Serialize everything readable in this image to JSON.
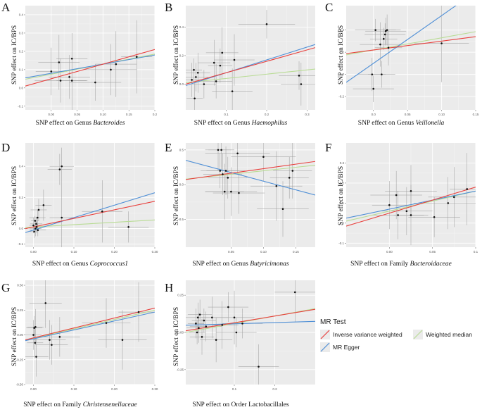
{
  "figure": {
    "ylabel": "SNP effect on IC/BPS",
    "xlabel_prefix": "SNP effect on"
  },
  "legend": {
    "title": "MR Test",
    "items": [
      {
        "label": "Inverse variance weighted",
        "color": "#e8403d"
      },
      {
        "label": "MR Egger",
        "color": "#4f8fd6"
      },
      {
        "label": "Weighted median",
        "color": "#b9dc95"
      }
    ]
  },
  "chart_data": [
    {
      "id": "A",
      "type": "scatter",
      "xlabel_text": "SNP effect on Genus",
      "xlabel_taxon": "Bacteroides",
      "xlim": [
        -0.05,
        0.2
      ],
      "ylim": [
        -0.12,
        0.45
      ],
      "xticks": [
        0.0,
        0.05,
        0.1,
        0.15,
        0.2
      ],
      "yticks": [
        -0.1,
        0.0,
        0.1,
        0.2,
        0.3,
        0.4
      ],
      "xtick_labels": [
        "0.00",
        "0.05",
        "0.10",
        "0.15",
        "0.2"
      ],
      "ytick_labels": [
        "-0.1",
        "0.0",
        "0.1",
        "0.2",
        "0.3",
        "0.4"
      ],
      "points": [
        {
          "x": 0.0,
          "y": 0.09,
          "xe": 0.03,
          "ye": 0.13
        },
        {
          "x": 0.015,
          "y": 0.14,
          "xe": 0.04,
          "ye": 0.15
        },
        {
          "x": 0.018,
          "y": 0.04,
          "xe": 0.05,
          "ye": 0.12
        },
        {
          "x": 0.035,
          "y": 0.06,
          "xe": 0.04,
          "ye": 0.12
        },
        {
          "x": 0.04,
          "y": 0.16,
          "xe": 0.03,
          "ye": 0.14
        },
        {
          "x": 0.04,
          "y": 0.04,
          "xe": 0.03,
          "ye": 0.16
        },
        {
          "x": 0.085,
          "y": 0.03,
          "xe": 0.05,
          "ye": 0.1
        },
        {
          "x": 0.115,
          "y": 0.1,
          "xe": 0.05,
          "ye": 0.14
        },
        {
          "x": 0.125,
          "y": 0.13,
          "xe": 0.04,
          "ye": 0.18
        },
        {
          "x": 0.165,
          "y": 0.17,
          "xe": 0.03,
          "ye": 0.2
        }
      ],
      "lines": [
        {
          "method": "Inverse variance weighted",
          "slope": 0.8,
          "intercept": 0.05
        },
        {
          "method": "MR Egger",
          "slope": 0.5,
          "intercept": 0.08
        },
        {
          "method": "Weighted median",
          "slope": 0.55,
          "intercept": 0.075
        }
      ]
    },
    {
      "id": "B",
      "type": "scatter",
      "xlabel_text": "SNP effect on Genus",
      "xlabel_taxon": "Haemophilus",
      "xlim": [
        0.0,
        0.32
      ],
      "ylim": [
        -0.18,
        0.55
      ],
      "xticks": [
        0.1,
        0.2,
        0.3
      ],
      "yticks": [
        0.0,
        0.2,
        0.4
      ],
      "xtick_labels": [
        "0.1",
        "0.2",
        "0.3"
      ],
      "ytick_labels": [
        "0.0",
        "0.2",
        "0.4"
      ],
      "points": [
        {
          "x": 0.015,
          "y": 0.03,
          "xe": 0.02,
          "ye": 0.12
        },
        {
          "x": 0.02,
          "y": 0.1,
          "xe": 0.02,
          "ye": 0.08
        },
        {
          "x": 0.022,
          "y": -0.1,
          "xe": 0.02,
          "ye": 0.12
        },
        {
          "x": 0.025,
          "y": 0.05,
          "xe": 0.03,
          "ye": 0.1
        },
        {
          "x": 0.03,
          "y": 0.08,
          "xe": 0.03,
          "ye": 0.14
        },
        {
          "x": 0.045,
          "y": 0.0,
          "xe": 0.03,
          "ye": 0.1
        },
        {
          "x": 0.07,
          "y": 0.15,
          "xe": 0.04,
          "ye": 0.16
        },
        {
          "x": 0.075,
          "y": 0.02,
          "xe": 0.04,
          "ye": 0.12
        },
        {
          "x": 0.085,
          "y": 0.13,
          "xe": 0.03,
          "ye": 0.12
        },
        {
          "x": 0.09,
          "y": 0.22,
          "xe": 0.04,
          "ye": 0.18
        },
        {
          "x": 0.115,
          "y": -0.05,
          "xe": 0.05,
          "ye": 0.16
        },
        {
          "x": 0.12,
          "y": 0.17,
          "xe": 0.05,
          "ye": 0.18
        },
        {
          "x": 0.2,
          "y": 0.42,
          "xe": 0.07,
          "ye": 0.1
        },
        {
          "x": 0.28,
          "y": 0.06,
          "xe": 0.05,
          "ye": 0.1
        },
        {
          "x": 0.285,
          "y": 0.0,
          "xe": 0.05,
          "ye": 0.15
        }
      ],
      "lines": [
        {
          "method": "Inverse variance weighted",
          "slope": 0.8,
          "intercept": 0.0
        },
        {
          "method": "MR Egger",
          "slope": 0.9,
          "intercept": -0.01
        },
        {
          "method": "Weighted median",
          "slope": 0.3,
          "intercept": 0.01
        }
      ]
    },
    {
      "id": "C",
      "type": "scatter",
      "xlabel_text": "SNP effect on Genus",
      "xlabel_taxon": "Veillonella",
      "xlim": [
        -0.04,
        0.15
      ],
      "ylim": [
        -0.32,
        0.62
      ],
      "xticks": [
        0.0,
        0.05,
        0.1,
        0.15
      ],
      "yticks": [
        -0.2,
        0.0,
        0.2,
        0.4
      ],
      "xtick_labels": [
        "0.0",
        "0.05",
        "0.10",
        "0.15"
      ],
      "ytick_labels": [
        "-0.2",
        "0.0",
        "0.2",
        "0.4"
      ],
      "points": [
        {
          "x": -0.002,
          "y": 0.0,
          "xe": 0.02,
          "ye": 0.15
        },
        {
          "x": 0.0,
          "y": -0.13,
          "xe": 0.03,
          "ye": 0.12
        },
        {
          "x": 0.003,
          "y": 0.4,
          "xe": 0.03,
          "ye": 0.1
        },
        {
          "x": 0.01,
          "y": 0.27,
          "xe": 0.03,
          "ye": 0.2
        },
        {
          "x": 0.012,
          "y": 0.0,
          "xe": 0.02,
          "ye": 0.12
        },
        {
          "x": 0.015,
          "y": 0.32,
          "xe": 0.02,
          "ye": 0.1
        },
        {
          "x": 0.017,
          "y": 0.36,
          "xe": 0.03,
          "ye": 0.1
        },
        {
          "x": 0.018,
          "y": 0.39,
          "xe": 0.03,
          "ye": 0.12
        },
        {
          "x": 0.02,
          "y": 0.4,
          "xe": 0.02,
          "ye": 0.14
        },
        {
          "x": 0.022,
          "y": 0.24,
          "xe": 0.02,
          "ye": 0.16
        },
        {
          "x": 0.1,
          "y": 0.28,
          "xe": 0.04,
          "ye": 0.35
        }
      ],
      "lines": [
        {
          "method": "Inverse variance weighted",
          "slope": 0.8,
          "intercept": 0.22
        },
        {
          "method": "MR Egger",
          "slope": 4.3,
          "intercept": 0.1
        },
        {
          "method": "Weighted median",
          "slope": 1.1,
          "intercept": 0.22
        }
      ]
    },
    {
      "id": "D",
      "type": "scatter",
      "xlabel_text": "SNP effect on Genus",
      "xlabel_taxon": "Coprococcus1",
      "xlim": [
        -0.02,
        0.3
      ],
      "ylim": [
        -0.12,
        0.55
      ],
      "xticks": [
        0.0,
        0.1,
        0.2,
        0.3
      ],
      "yticks": [
        -0.1,
        0.0,
        0.2,
        0.4
      ],
      "xtick_labels": [
        "0.00",
        "0.10",
        "0.20",
        "0.30"
      ],
      "ytick_labels": [
        "-0.1",
        "0.0",
        "0.2",
        "0.4"
      ],
      "points": [
        {
          "x": 0.0,
          "y": 0.02,
          "xe": 0.01,
          "ye": 0.05
        },
        {
          "x": 0.002,
          "y": -0.02,
          "xe": 0.01,
          "ye": 0.04
        },
        {
          "x": 0.004,
          "y": 0.05,
          "xe": 0.01,
          "ye": 0.03
        },
        {
          "x": 0.005,
          "y": 0.0,
          "xe": 0.015,
          "ye": 0.05
        },
        {
          "x": 0.007,
          "y": 0.03,
          "xe": 0.015,
          "ye": 0.04
        },
        {
          "x": 0.008,
          "y": 0.01,
          "xe": 0.01,
          "ye": 0.04
        },
        {
          "x": 0.01,
          "y": 0.07,
          "xe": 0.02,
          "ye": 0.05
        },
        {
          "x": 0.011,
          "y": -0.01,
          "xe": 0.02,
          "ye": 0.04
        },
        {
          "x": 0.013,
          "y": 0.12,
          "xe": 0.02,
          "ye": 0.07
        },
        {
          "x": 0.025,
          "y": 0.15,
          "xe": 0.02,
          "ye": 0.1
        },
        {
          "x": 0.065,
          "y": 0.38,
          "xe": 0.03,
          "ye": 0.1
        },
        {
          "x": 0.07,
          "y": 0.4,
          "xe": 0.03,
          "ye": 0.12
        },
        {
          "x": 0.07,
          "y": 0.07,
          "xe": 0.03,
          "ye": 0.25
        },
        {
          "x": 0.17,
          "y": 0.11,
          "xe": 0.05,
          "ye": 0.2
        },
        {
          "x": 0.235,
          "y": 0.01,
          "xe": 0.05,
          "ye": 0.1
        }
      ],
      "lines": [
        {
          "method": "Inverse variance weighted",
          "slope": 0.55,
          "intercept": 0.01
        },
        {
          "method": "MR Egger",
          "slope": 0.8,
          "intercept": -0.01
        },
        {
          "method": "Weighted median",
          "slope": 0.15,
          "intercept": 0.01
        }
      ]
    },
    {
      "id": "E",
      "type": "scatter",
      "xlabel_text": "SNP effect on Genus",
      "xlabel_taxon": "Butyricimonas",
      "xlim": [
        -0.02,
        0.18
      ],
      "ylim": [
        -0.9,
        0.6
      ],
      "xticks": [
        0.05,
        0.1,
        0.15
      ],
      "yticks": [
        -0.5,
        0.0,
        0.5
      ],
      "xtick_labels": [
        "0.05",
        "0.10",
        "0.15"
      ],
      "ytick_labels": [
        "-0.5",
        "0.0",
        "0.5"
      ],
      "points": [
        {
          "x": 0.03,
          "y": 0.5,
          "xe": 0.02,
          "ye": 0.3
        },
        {
          "x": 0.033,
          "y": 0.2,
          "xe": 0.03,
          "ye": 0.25
        },
        {
          "x": 0.035,
          "y": 0.5,
          "xe": 0.02,
          "ye": 0.3
        },
        {
          "x": 0.037,
          "y": 0.15,
          "xe": 0.03,
          "ye": 0.3
        },
        {
          "x": 0.04,
          "y": -0.1,
          "xe": 0.03,
          "ye": 0.4
        },
        {
          "x": 0.042,
          "y": 0.2,
          "xe": 0.03,
          "ye": 0.35
        },
        {
          "x": 0.045,
          "y": 0.1,
          "xe": 0.03,
          "ye": 0.3
        },
        {
          "x": 0.05,
          "y": -0.1,
          "xe": 0.04,
          "ye": 0.35
        },
        {
          "x": 0.06,
          "y": 0.45,
          "xe": 0.05,
          "ye": 0.3
        },
        {
          "x": 0.062,
          "y": -0.12,
          "xe": 0.04,
          "ye": 0.3
        },
        {
          "x": 0.1,
          "y": 0.4,
          "xe": 0.05,
          "ye": 0.35
        },
        {
          "x": 0.12,
          "y": -0.02,
          "xe": 0.04,
          "ye": 0.5
        },
        {
          "x": 0.13,
          "y": -0.35,
          "xe": 0.04,
          "ye": 0.4
        },
        {
          "x": 0.14,
          "y": 0.1,
          "xe": 0.03,
          "ye": 0.3
        },
        {
          "x": 0.145,
          "y": 0.2,
          "xe": 0.03,
          "ye": 0.4
        }
      ],
      "lines": [
        {
          "method": "Inverse variance weighted",
          "slope": 1.3,
          "intercept": 0.1
        },
        {
          "method": "MR Egger",
          "slope": -2.5,
          "intercept": 0.3
        },
        {
          "method": "Weighted median",
          "slope": 1.0,
          "intercept": 0.1
        }
      ]
    },
    {
      "id": "F",
      "type": "scatter",
      "xlabel_text": "SNP effect on Family",
      "xlabel_taxon": "Bacteroidaceae",
      "xlim": [
        -0.05,
        0.1
      ],
      "ylim": [
        -0.12,
        0.4
      ],
      "xticks": [
        0.0,
        0.05,
        0.1
      ],
      "yticks": [
        -0.1,
        0.0,
        0.1,
        0.2,
        0.3
      ],
      "xtick_labels": [
        "0.00",
        "0.05",
        "0.1"
      ],
      "ytick_labels": [
        "-0.1",
        "0.0",
        "0.1",
        "0.2",
        "0.3"
      ],
      "points": [
        {
          "x": 0.0,
          "y": 0.09,
          "xe": 0.02,
          "ye": 0.12
        },
        {
          "x": 0.008,
          "y": 0.14,
          "xe": 0.03,
          "ye": 0.12
        },
        {
          "x": 0.01,
          "y": 0.04,
          "xe": 0.03,
          "ye": 0.12
        },
        {
          "x": 0.02,
          "y": 0.06,
          "xe": 0.03,
          "ye": 0.12
        },
        {
          "x": 0.025,
          "y": 0.16,
          "xe": 0.03,
          "ye": 0.13
        },
        {
          "x": 0.025,
          "y": 0.04,
          "xe": 0.02,
          "ye": 0.15
        },
        {
          "x": 0.052,
          "y": 0.03,
          "xe": 0.03,
          "ye": 0.1
        },
        {
          "x": 0.068,
          "y": 0.1,
          "xe": 0.04,
          "ye": 0.13
        },
        {
          "x": 0.075,
          "y": 0.13,
          "xe": 0.03,
          "ye": 0.15
        },
        {
          "x": 0.09,
          "y": 0.17,
          "xe": 0.02,
          "ye": 0.18
        }
      ],
      "lines": [
        {
          "method": "Inverse variance weighted",
          "slope": 1.3,
          "intercept": 0.05
        },
        {
          "method": "MR Egger",
          "slope": 0.9,
          "intercept": 0.07
        },
        {
          "method": "Weighted median",
          "slope": 1.0,
          "intercept": 0.06
        }
      ]
    },
    {
      "id": "G",
      "type": "scatter",
      "xlabel_text": "SNP effect on Family",
      "xlabel_taxon": "Christensenellaceae",
      "xlim": [
        -0.02,
        0.3
      ],
      "ylim": [
        -0.5,
        0.55
      ],
      "xticks": [
        0.0,
        0.1,
        0.2,
        0.3
      ],
      "yticks": [
        -0.5,
        -0.25,
        0.0,
        0.25,
        0.5
      ],
      "xtick_labels": [
        "0.00",
        "0.10",
        "0.20",
        "0.30"
      ],
      "ytick_labels": [
        "-0.50",
        "-0.25",
        "0.00",
        "0.25",
        "0.50"
      ],
      "points": [
        {
          "x": 0.0,
          "y": 0.0,
          "xe": 0.02,
          "ye": 0.15
        },
        {
          "x": 0.002,
          "y": 0.07,
          "xe": 0.02,
          "ye": 0.12
        },
        {
          "x": 0.004,
          "y": -0.08,
          "xe": 0.02,
          "ye": 0.15
        },
        {
          "x": 0.005,
          "y": 0.08,
          "xe": 0.02,
          "ye": 0.18
        },
        {
          "x": 0.007,
          "y": -0.22,
          "xe": 0.03,
          "ye": 0.2
        },
        {
          "x": 0.03,
          "y": 0.32,
          "xe": 0.04,
          "ye": 0.25
        },
        {
          "x": 0.04,
          "y": -0.05,
          "xe": 0.04,
          "ye": 0.2
        },
        {
          "x": 0.045,
          "y": -0.1,
          "xe": 0.04,
          "ye": 0.2
        },
        {
          "x": 0.065,
          "y": -0.02,
          "xe": 0.05,
          "ye": 0.2
        },
        {
          "x": 0.18,
          "y": 0.12,
          "xe": 0.06,
          "ye": 0.25
        },
        {
          "x": 0.22,
          "y": -0.05,
          "xe": 0.06,
          "ye": 0.3
        },
        {
          "x": 0.26,
          "y": 0.23,
          "xe": 0.05,
          "ye": 0.3
        }
      ],
      "lines": [
        {
          "method": "Inverse variance weighted",
          "slope": 1.0,
          "intercept": -0.03
        },
        {
          "method": "MR Egger",
          "slope": 0.9,
          "intercept": -0.04
        },
        {
          "method": "Weighted median",
          "slope": 0.95,
          "intercept": -0.035
        }
      ]
    },
    {
      "id": "H",
      "type": "scatter",
      "xlabel_text": "SNP effect on Order Lactobacillales",
      "xlabel_taxon": "",
      "xlim": [
        -0.02,
        0.3
      ],
      "ylim": [
        -0.35,
        0.35
      ],
      "xticks": [
        0.1,
        0.2
      ],
      "yticks": [
        -0.25,
        0.0,
        0.25
      ],
      "xtick_labels": [
        "0.1",
        "0.2"
      ],
      "ytick_labels": [
        "-0.25",
        "0.00",
        "0.25"
      ],
      "points": [
        {
          "x": 0.005,
          "y": 0.06,
          "xe": 0.02,
          "ye": 0.1
        },
        {
          "x": 0.008,
          "y": 0.0,
          "xe": 0.02,
          "ye": 0.08
        },
        {
          "x": 0.01,
          "y": 0.1,
          "xe": 0.03,
          "ye": 0.1
        },
        {
          "x": 0.012,
          "y": 0.03,
          "xe": 0.03,
          "ye": 0.1
        },
        {
          "x": 0.015,
          "y": 0.12,
          "xe": 0.03,
          "ye": 0.1
        },
        {
          "x": 0.02,
          "y": -0.03,
          "xe": 0.03,
          "ye": 0.12
        },
        {
          "x": 0.025,
          "y": 0.08,
          "xe": 0.03,
          "ye": 0.08
        },
        {
          "x": 0.03,
          "y": 0.04,
          "xe": 0.04,
          "ye": 0.1
        },
        {
          "x": 0.045,
          "y": 0.1,
          "xe": 0.04,
          "ye": 0.14
        },
        {
          "x": 0.055,
          "y": -0.05,
          "xe": 0.04,
          "ye": 0.15
        },
        {
          "x": 0.07,
          "y": 0.05,
          "xe": 0.04,
          "ye": 0.16
        },
        {
          "x": 0.085,
          "y": 0.17,
          "xe": 0.05,
          "ye": 0.1
        },
        {
          "x": 0.1,
          "y": 0.1,
          "xe": 0.05,
          "ye": 0.18
        },
        {
          "x": 0.105,
          "y": 0.0,
          "xe": 0.05,
          "ye": 0.1
        },
        {
          "x": 0.12,
          "y": 0.06,
          "xe": 0.05,
          "ye": 0.1
        },
        {
          "x": 0.16,
          "y": -0.23,
          "xe": 0.05,
          "ye": 0.15
        },
        {
          "x": 0.25,
          "y": 0.27,
          "xe": 0.05,
          "ye": 0.2
        }
      ],
      "lines": [
        {
          "method": "Inverse variance weighted",
          "slope": 0.45,
          "intercept": 0.02
        },
        {
          "method": "MR Egger",
          "slope": 0.08,
          "intercept": 0.05
        },
        {
          "method": "Weighted median",
          "slope": 0.5,
          "intercept": 0.01
        }
      ]
    }
  ]
}
